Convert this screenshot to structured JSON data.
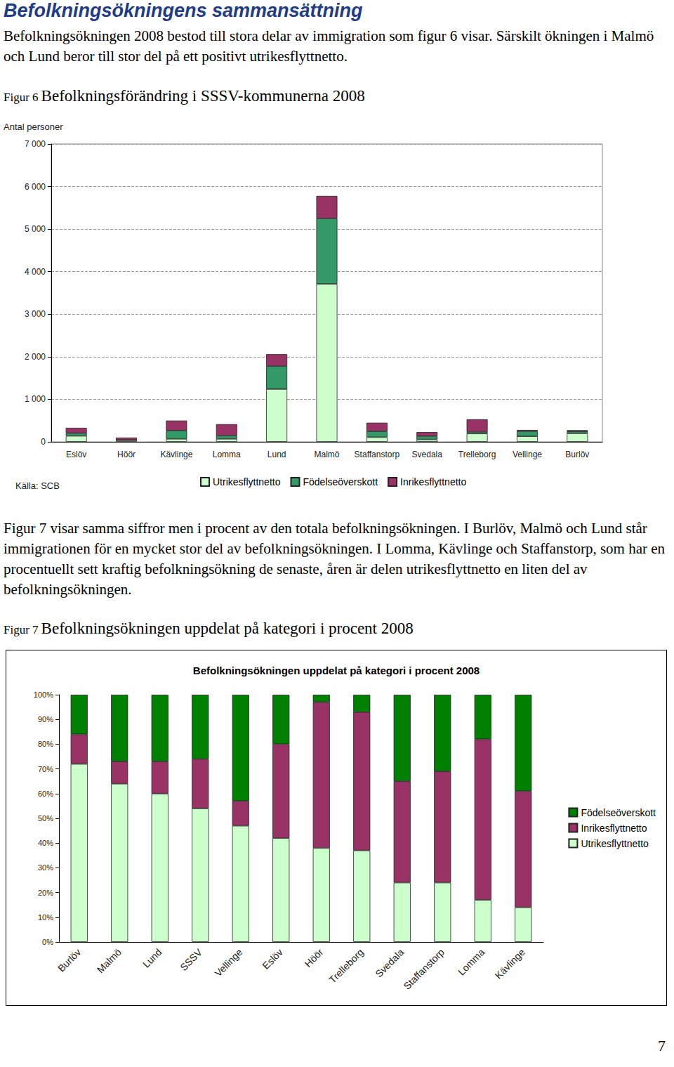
{
  "document": {
    "heading": "Befolkningsökningens sammansättning",
    "paragraphs": [
      "Befolkningsökningen 2008 bestod till stora delar av immigration som figur 6 visar. Särskilt ökningen i Malmö och Lund beror till stor del på ett positivt utrikesflyttnetto.",
      "Figur 7 visar samma siffror men i procent av den totala befolkningsökningen. I Burlöv, Malmö och Lund står immigrationen för en mycket stor del av befolkningsökningen. I Lomma, Kävlinge och Staffanstorp, som har en procentuellt sett kraftig befolkningsökning de senaste, åren är delen utrikesflyttnetto en liten del av befolkningsökningen."
    ],
    "figures": [
      {
        "label": "Figur 6",
        "caption": "Befolkningsförändring i SSSV-kommunerna 2008"
      },
      {
        "label": "Figur 7",
        "caption": "Befolkningsökningen uppdelat på kategori i procent 2008"
      }
    ],
    "page_number": 7
  },
  "chart_data": [
    {
      "type": "bar",
      "stacked": true,
      "y_label": "Antal personer",
      "annotation": "Källa: SCB",
      "categories": [
        "Eslöv",
        "Höör",
        "Kävlinge",
        "Lomma",
        "Lund",
        "Malmö",
        "Staffanstorp",
        "Svedala",
        "Trelleborg",
        "Vellinge",
        "Burlöv"
      ],
      "series": [
        {
          "name": "Utrikesflyttnetto",
          "color": "#ccffcc",
          "values": [
            140,
            38,
            70,
            70,
            1240,
            3710,
            108,
            55,
            195,
            130,
            200
          ]
        },
        {
          "name": "Födelseöverskott",
          "color": "#339966",
          "values": [
            65,
            3,
            195,
            75,
            540,
            1540,
            139,
            80,
            40,
            120,
            45
          ]
        },
        {
          "name": "Inrikesflyttnetto",
          "color": "#993366",
          "values": [
            125,
            59,
            235,
            270,
            280,
            530,
            203,
            95,
            295,
            30,
            30
          ]
        }
      ],
      "ylim": [
        0,
        7000
      ],
      "yticks": [
        0,
        {
          "value": 1000,
          "label": "1 000"
        },
        {
          "value": 2000,
          "label": "2 000"
        },
        {
          "value": 3000,
          "label": "3 000"
        },
        {
          "value": 4000,
          "label": "4 000"
        },
        {
          "value": 5000,
          "label": "5 000"
        },
        {
          "value": 6000,
          "label": "6 000"
        },
        {
          "value": 7000,
          "label": "7 000"
        }
      ],
      "grid": true,
      "legend": "bottom"
    },
    {
      "type": "bar",
      "stacked": true,
      "title": "Befolkningsökningen uppdelat på kategori i procent 2008",
      "categories": [
        "Burlöv",
        "Malmö",
        "Lund",
        "SSSV",
        "Vellinge",
        "Eslöv",
        "Höör",
        "Trelleborg",
        "Svedala",
        "Staffanstorp",
        "Lomma",
        "Kävlinge"
      ],
      "series": [
        {
          "name": "Utrikesflyttnetto",
          "color": "#ccffcc",
          "values": [
            72,
            64,
            60,
            54,
            47,
            42,
            38,
            37,
            24,
            24,
            17,
            14
          ]
        },
        {
          "name": "Inrikesflyttnetto",
          "color": "#993366",
          "values": [
            12,
            9,
            13,
            20,
            10,
            38,
            59,
            56,
            41,
            45,
            65,
            47
          ]
        },
        {
          "name": "Födelseöverskott",
          "color": "#008000",
          "values": [
            16,
            27,
            27,
            26,
            43,
            20,
            3,
            7,
            35,
            31,
            18,
            39
          ]
        }
      ],
      "ylim": [
        0,
        100
      ],
      "yticks": [
        {
          "value": 0,
          "label": "0%"
        },
        {
          "value": 10,
          "label": "10%"
        },
        {
          "value": 20,
          "label": "20%"
        },
        {
          "value": 30,
          "label": "30%"
        },
        {
          "value": 40,
          "label": "40%"
        },
        {
          "value": 50,
          "label": "50%"
        },
        {
          "value": 60,
          "label": "60%"
        },
        {
          "value": 70,
          "label": "70%"
        },
        {
          "value": 80,
          "label": "80%"
        },
        {
          "value": 90,
          "label": "90%"
        },
        {
          "value": 100,
          "label": "100%"
        }
      ],
      "grid": false,
      "legend": "right"
    }
  ]
}
